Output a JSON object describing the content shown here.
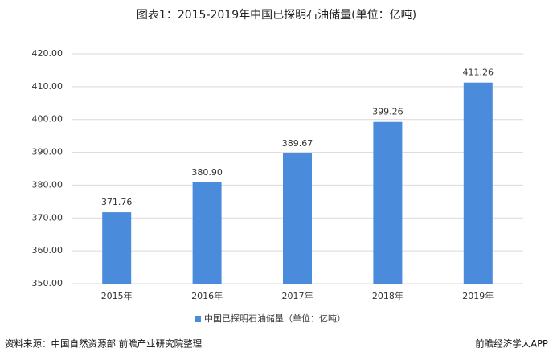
{
  "chart_data": {
    "type": "bar",
    "title": "图表1：2015-2019年中国已探明石油储量(单位：亿吨)",
    "categories": [
      "2015年",
      "2016年",
      "2017年",
      "2018年",
      "2019年"
    ],
    "series": [
      {
        "name": "中国已探明石油储量（单位：亿吨）",
        "color": "#4a8bdc",
        "values": [
          371.76,
          380.9,
          389.67,
          399.26,
          411.26
        ],
        "value_labels": [
          "371.76",
          "380.90",
          "389.67",
          "399.26",
          "411.26"
        ]
      }
    ],
    "ylim": [
      350,
      420
    ],
    "yticks": [
      {
        "value": 350,
        "label": "350.00"
      },
      {
        "value": 360,
        "label": "360.00"
      },
      {
        "value": 370,
        "label": "370.00"
      },
      {
        "value": 380,
        "label": "380.00"
      },
      {
        "value": 390,
        "label": "390.00"
      },
      {
        "value": 400,
        "label": "400.00"
      },
      {
        "value": 410,
        "label": "410.00"
      },
      {
        "value": 420,
        "label": "420.00"
      }
    ],
    "grid": true,
    "legend": "bottom"
  },
  "footer": {
    "source": "资料来源：中国自然资源部 前瞻产业研究院整理",
    "brand": "前瞻经济学人APP"
  }
}
